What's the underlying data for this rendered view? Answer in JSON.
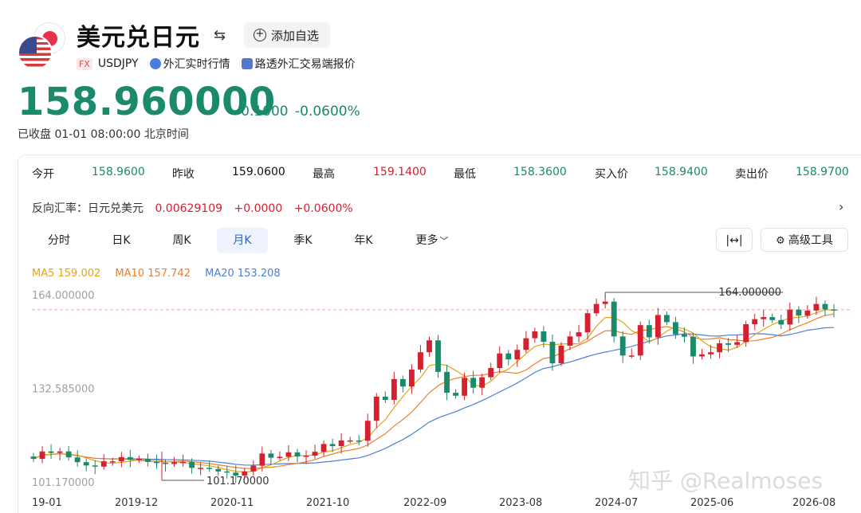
{
  "header": {
    "title": "美元兑日元",
    "watch_label": "添加自选",
    "fx_badge": "FX",
    "symbol": "USDJPY",
    "source1": "外汇实时行情",
    "source2": "路透外汇交易端报价"
  },
  "quote": {
    "price": "158.960000",
    "change": "-0.1000",
    "change_pct": "-0.0600%",
    "status": "已收盘 01-01 08:00:00 北京时间"
  },
  "stats": {
    "open_label": "今开",
    "open": "158.9600",
    "prev_label": "昨收",
    "prev": "159.0600",
    "high_label": "最高",
    "high": "159.1400",
    "low_label": "最低",
    "low": "158.3600",
    "bid_label": "买入价",
    "bid": "158.9400",
    "ask_label": "卖出价",
    "ask": "158.9700"
  },
  "reverse": {
    "label": "反向汇率：日元兑美元",
    "rate": "0.00629109",
    "change": "+0.0000",
    "change_pct": "+0.0600%"
  },
  "tabs": [
    "分时",
    "日K",
    "周K",
    "月K",
    "季K",
    "年K",
    "更多"
  ],
  "active_tab": "月K",
  "tools": {
    "advanced": "高级工具"
  },
  "ma": {
    "ma5": "MA5 159.002",
    "ma10": "MA10 157.742",
    "ma20": "MA20 153.208"
  },
  "colors": {
    "up": "#d4202f",
    "down": "#1a8a6a",
    "ma5": "#e8a317",
    "ma10": "#ef7d2e",
    "ma20": "#4f7fd9"
  },
  "watermark": "知乎 @Realmoses",
  "chart_data": {
    "type": "candlestick",
    "y_ticks": [
      "164.000000",
      "132.585000",
      "101.170000"
    ],
    "ylim": [
      101.17,
      164.0
    ],
    "x_ticks": [
      "19-01",
      "2019-12",
      "2020-11",
      "2021-10",
      "2022-09",
      "2023-08",
      "2024-07",
      "2025-06",
      "2026-08"
    ],
    "max_label": "164.000000",
    "min_label": "101.170000",
    "last_close_line": 158.96,
    "closes": [
      108.9,
      111.4,
      110.9,
      111.4,
      109.4,
      107.8,
      106.7,
      106.3,
      108.1,
      108.1,
      109.5,
      108.6,
      108.9,
      107.9,
      107.6,
      107.2,
      107.8,
      107.9,
      105.9,
      105.9,
      105.5,
      104.7,
      104.3,
      103.3,
      104.7,
      106.6,
      110.7,
      109.3,
      109.6,
      111.1,
      109.7,
      110.0,
      111.3,
      113.9,
      113.2,
      115.1,
      115.1,
      115.0,
      121.7,
      129.8,
      128.7,
      135.7,
      133.2,
      138.9,
      144.7,
      148.7,
      138.1,
      131.1,
      130.1,
      136.1,
      132.8,
      136.3,
      139.4,
      144.3,
      142.3,
      145.5,
      149.4,
      151.7,
      148.2,
      141.0,
      146.9,
      150.0,
      151.4,
      157.8,
      160.9,
      161.7,
      150.0,
      143.6,
      143.6,
      153.8,
      149.7,
      157.2,
      154.8,
      150.7,
      149.9,
      143.3,
      144.0,
      144.7,
      147.7,
      147.2,
      148.1,
      154.1,
      155.8,
      156.5,
      155.5,
      154.0,
      159.0,
      157.0,
      158.7,
      160.9,
      159.06,
      158.96
    ],
    "opens": [
      109.7,
      108.9,
      111.4,
      110.9,
      111.4,
      109.4,
      107.8,
      106.7,
      106.3,
      108.1,
      108.1,
      109.5,
      108.6,
      108.9,
      107.9,
      107.6,
      107.2,
      107.8,
      107.9,
      105.9,
      105.9,
      105.5,
      104.7,
      104.3,
      103.3,
      104.7,
      106.6,
      110.7,
      109.3,
      109.6,
      111.1,
      109.7,
      110.0,
      111.3,
      113.9,
      113.2,
      115.1,
      115.1,
      115.0,
      121.7,
      129.8,
      128.7,
      135.7,
      133.2,
      138.9,
      144.7,
      148.7,
      138.1,
      131.1,
      130.1,
      136.1,
      132.8,
      136.3,
      139.4,
      144.3,
      142.3,
      145.5,
      149.4,
      151.7,
      148.2,
      141.0,
      146.9,
      150.0,
      151.4,
      157.8,
      160.9,
      161.7,
      150.0,
      143.6,
      143.6,
      153.8,
      149.7,
      157.2,
      154.8,
      150.7,
      149.9,
      143.3,
      144.0,
      144.7,
      147.7,
      147.2,
      148.1,
      154.1,
      155.8,
      156.5,
      155.5,
      154.0,
      159.0,
      157.0,
      158.7,
      160.9,
      159.06
    ]
  }
}
